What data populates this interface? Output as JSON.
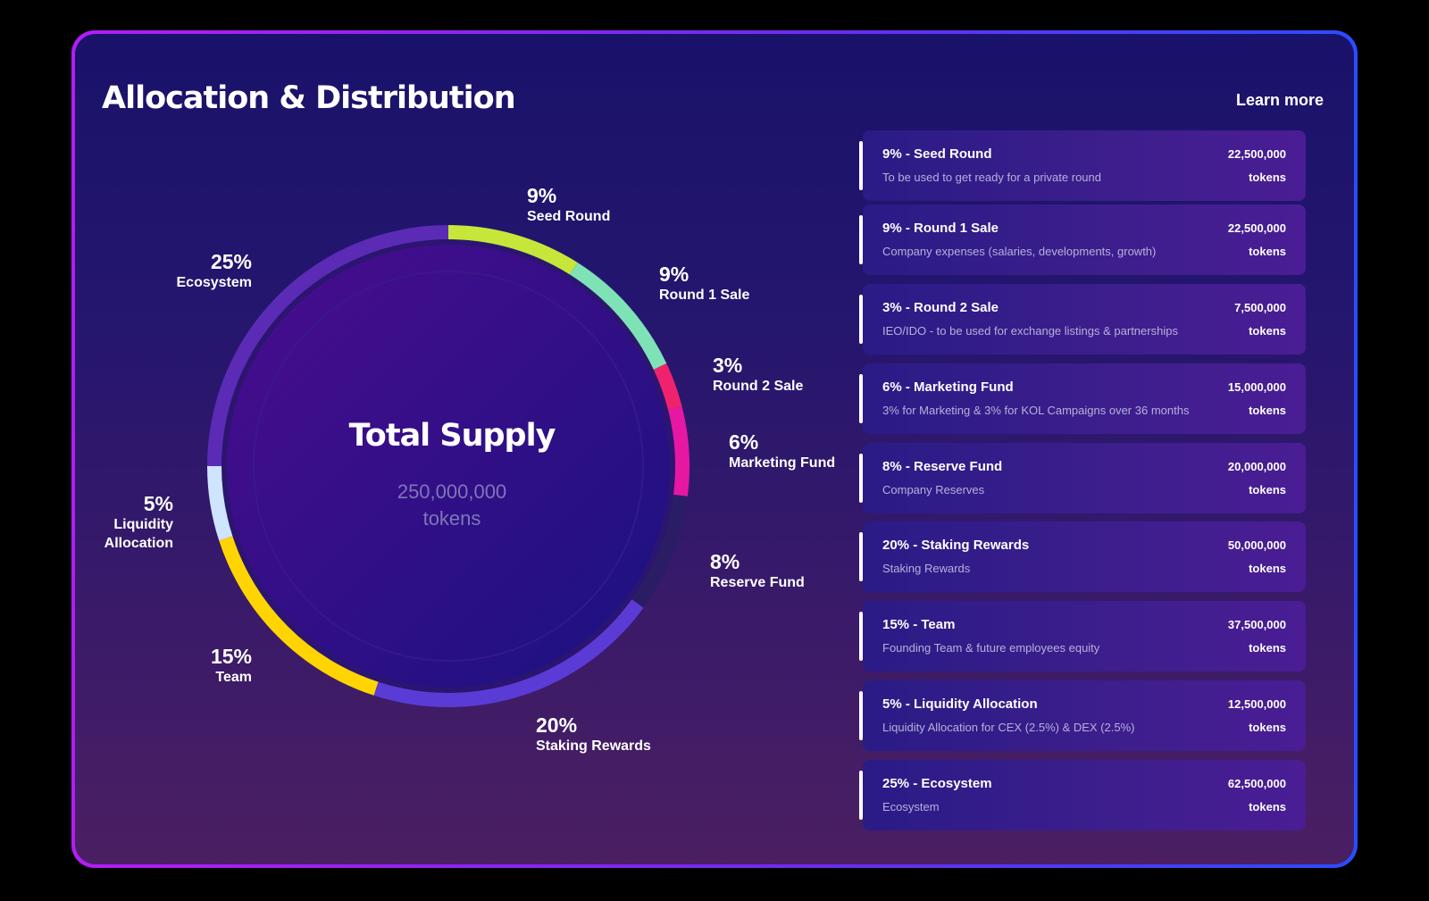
{
  "header": {
    "title": "Allocation & Distribution",
    "learn_more": "Learn more"
  },
  "center": {
    "title": "Total Supply",
    "value": "250,000,000",
    "unit": "tokens"
  },
  "chart_data": {
    "type": "pie",
    "title": "Total Supply",
    "total": 250000000,
    "unit": "tokens",
    "slices": [
      {
        "label": "Seed Round",
        "percent": 9,
        "pct_label": "9%",
        "tokens": 22500000,
        "color": "#c6e63a"
      },
      {
        "label": "Round 1 Sale",
        "percent": 9,
        "pct_label": "9%",
        "tokens": 22500000,
        "color": "#7ee2b6"
      },
      {
        "label": "Round 2 Sale",
        "percent": 3,
        "pct_label": "3%",
        "tokens": 7500000,
        "color": "#f0226e"
      },
      {
        "label": "Marketing Fund",
        "percent": 6,
        "pct_label": "6%",
        "tokens": 15000000,
        "color": "#e617a3"
      },
      {
        "label": "Reserve Fund",
        "percent": 8,
        "pct_label": "8%",
        "tokens": 20000000,
        "color": "#2a1d66"
      },
      {
        "label": "Staking Rewards",
        "percent": 20,
        "pct_label": "20%",
        "tokens": 50000000,
        "color": "#5b3bd6"
      },
      {
        "label": "Team",
        "percent": 15,
        "pct_label": "15%",
        "tokens": 37500000,
        "color": "#ffd400"
      },
      {
        "label": "Liquidity Allocation",
        "percent": 5,
        "pct_label": "5%",
        "tokens": 12500000,
        "color": "#cfe4ff"
      },
      {
        "label": "Ecosystem",
        "percent": 25,
        "pct_label": "25%",
        "tokens": 62500000,
        "color": "#5b2bb5"
      }
    ]
  },
  "chart_labels": [
    {
      "pct": "9%",
      "name": "Seed Round"
    },
    {
      "pct": "9%",
      "name": "Round 1 Sale"
    },
    {
      "pct": "3%",
      "name": "Round 2 Sale"
    },
    {
      "pct": "6%",
      "name": "Marketing Fund"
    },
    {
      "pct": "8%",
      "name": "Reserve Fund"
    },
    {
      "pct": "20%",
      "name": "Staking Rewards"
    },
    {
      "pct": "15%",
      "name": "Team"
    },
    {
      "pct": "5%",
      "name": "Liquidity\nAllocation"
    },
    {
      "pct": "25%",
      "name": "Ecosystem"
    }
  ],
  "allocations": [
    {
      "title": "9% - Seed Round",
      "description": "To be used to get ready for a private round",
      "amount": "22,500,000",
      "unit": "tokens"
    },
    {
      "title": "9% - Round 1 Sale",
      "description": "Company expenses (salaries, developments, growth)",
      "amount": "22,500,000",
      "unit": "tokens"
    },
    {
      "title": "3% - Round 2 Sale",
      "description": "IEO/IDO - to be used for exchange listings & partnerships",
      "amount": "7,500,000",
      "unit": "tokens"
    },
    {
      "title": "6% - Marketing Fund",
      "description": "3% for Marketing & 3% for KOL Campaigns over 36 months",
      "amount": "15,000,000",
      "unit": "tokens"
    },
    {
      "title": "8% - Reserve Fund",
      "description": "Company Reserves",
      "amount": "20,000,000",
      "unit": "tokens"
    },
    {
      "title": "20% - Staking Rewards",
      "description": "Staking Rewards",
      "amount": "50,000,000",
      "unit": "tokens"
    },
    {
      "title": "15% - Team",
      "description": "Founding Team & future employees equity",
      "amount": "37,500,000",
      "unit": "tokens"
    },
    {
      "title": "5% - Liquidity Allocation",
      "description": "Liquidity Allocation for CEX (2.5%) & DEX (2.5%)",
      "amount": "12,500,000",
      "unit": "tokens"
    },
    {
      "title": "25% - Ecosystem",
      "description": "Ecosystem",
      "amount": "62,500,000",
      "unit": "tokens"
    }
  ]
}
